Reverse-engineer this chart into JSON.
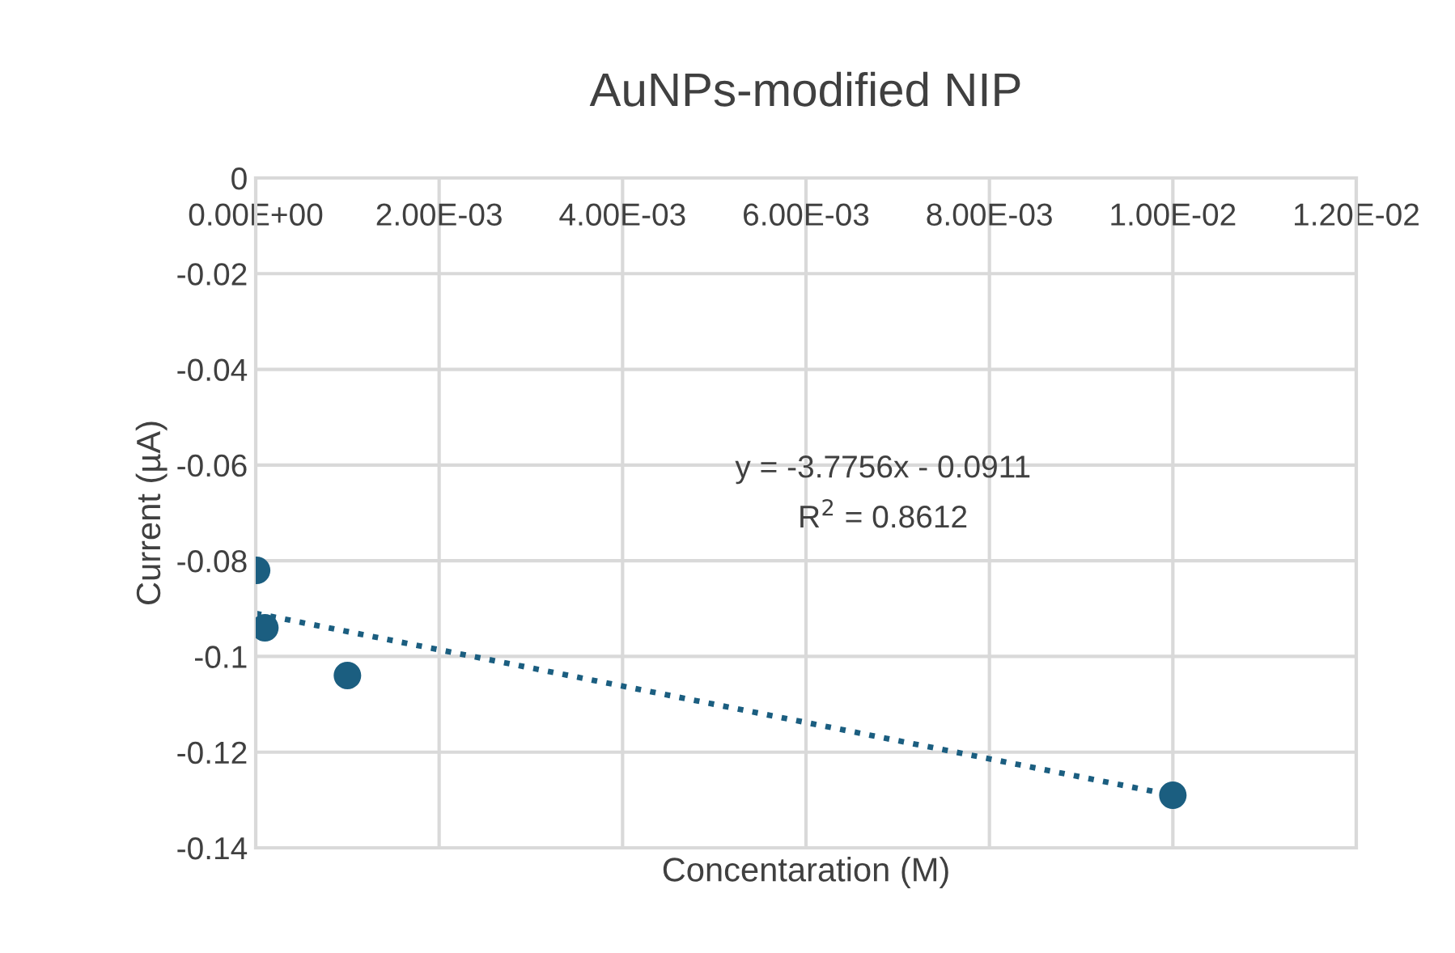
{
  "chart_data": {
    "type": "scatter",
    "title": "AuNPs-modified NIP",
    "xlabel": "Concentaration (M)",
    "ylabel": "Current (µA)",
    "series": [
      {
        "color": "#1b5e80",
        "marker": "circle",
        "x": [
          1e-05,
          0.0001,
          0.001,
          0.01
        ],
        "values": [
          -0.082,
          -0.094,
          -0.104,
          -0.129
        ]
      },
      {
        "type": "line",
        "color": "#1b5e80",
        "line_style": "dotted",
        "marker": "none",
        "x": [
          0,
          0.01
        ],
        "values": [
          -0.091,
          -0.129
        ]
      }
    ],
    "xlim": [
      0,
      0.012
    ],
    "xticks": [
      {
        "value": 0,
        "label": "0.00E+00"
      },
      {
        "value": 0.002,
        "label": "2.00E-03"
      },
      {
        "value": 0.004,
        "label": "4.00E-03"
      },
      {
        "value": 0.006,
        "label": "6.00E-03"
      },
      {
        "value": 0.008,
        "label": "8.00E-03"
      },
      {
        "value": 0.01,
        "label": "1.00E-02"
      },
      {
        "value": 0.012,
        "label": "1.20E-02"
      }
    ],
    "ylim": [
      -0.14,
      0
    ],
    "yticks": [
      -0.14,
      -0.12,
      -0.1,
      -0.08,
      -0.06,
      -0.04,
      -0.02,
      0
    ],
    "grid": true,
    "annotations": [
      "y = -3.7756x - 0.0911",
      "R$^{2}$ = 0.8612"
    ]
  }
}
